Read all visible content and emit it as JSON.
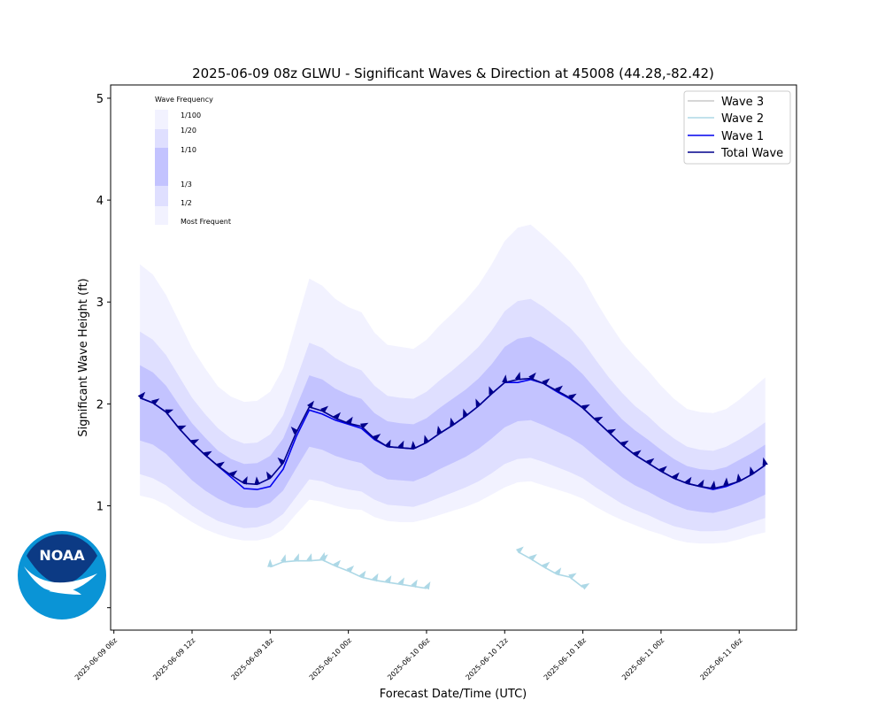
{
  "chart_data": {
    "type": "line",
    "title": "2025-06-09 08z GLWU - Significant Waves & Direction at 45008 (44.28,-82.42)",
    "xlabel": "Forecast Date/Time (UTC)",
    "ylabel": "Significant Wave Height (ft)",
    "ylim": [
      -0.22,
      5.13
    ],
    "xlim": [
      -0.25,
      52.4
    ],
    "y_ticks": [
      1,
      2,
      3,
      4,
      5
    ],
    "y_tick_labels": [
      "1",
      "2",
      "3",
      "4",
      "5"
    ],
    "x_ticks": [
      0,
      6,
      12,
      18,
      24,
      30,
      36,
      42,
      48
    ],
    "x_tick_labels": [
      "2025-06-09 06z",
      "2025-06-09 12z",
      "2025-06-09 18z",
      "2025-06-10 00z",
      "2025-06-10 06z",
      "2025-06-10 12z",
      "2025-06-10 18z",
      "2025-06-11 00z",
      "2025-06-11 06z"
    ],
    "grid": false,
    "legend_position": "top-right",
    "x_hours": [
      2,
      3,
      4,
      5,
      6,
      7,
      8,
      9,
      10,
      11,
      12,
      13,
      14,
      15,
      16,
      17,
      18,
      19,
      20,
      21,
      22,
      23,
      24,
      25,
      26,
      27,
      28,
      29,
      30,
      31,
      32,
      33,
      34,
      35,
      36,
      37,
      38,
      39,
      40,
      41,
      42,
      43,
      44,
      45,
      46,
      47,
      48,
      49,
      50
    ],
    "total_wave": [
      2.06,
      2.01,
      1.92,
      1.76,
      1.62,
      1.5,
      1.39,
      1.3,
      1.22,
      1.21,
      1.27,
      1.42,
      1.72,
      1.97,
      1.93,
      1.86,
      1.81,
      1.78,
      1.66,
      1.58,
      1.57,
      1.56,
      1.62,
      1.71,
      1.79,
      1.88,
      1.98,
      2.1,
      2.21,
      2.24,
      2.25,
      2.2,
      2.13,
      2.06,
      1.96,
      1.84,
      1.72,
      1.6,
      1.5,
      1.42,
      1.34,
      1.27,
      1.22,
      1.19,
      1.17,
      1.2,
      1.24,
      1.31,
      1.4
    ],
    "wave_1": [
      2.06,
      2.01,
      1.92,
      1.76,
      1.62,
      1.5,
      1.39,
      1.28,
      1.17,
      1.16,
      1.19,
      1.36,
      1.68,
      1.94,
      1.9,
      1.84,
      1.8,
      1.76,
      1.65,
      1.58,
      1.57,
      1.56,
      1.62,
      1.71,
      1.79,
      1.88,
      1.98,
      2.1,
      2.21,
      2.21,
      2.24,
      2.2,
      2.12,
      2.05,
      1.96,
      1.84,
      1.72,
      1.6,
      1.5,
      1.42,
      1.34,
      1.27,
      1.22,
      1.19,
      1.16,
      1.19,
      1.24,
      1.31,
      1.4
    ],
    "band_1_100_upper": [
      3.37,
      3.27,
      3.07,
      2.81,
      2.55,
      2.35,
      2.17,
      2.07,
      2.02,
      2.03,
      2.12,
      2.35,
      2.79,
      3.23,
      3.16,
      3.03,
      2.95,
      2.9,
      2.7,
      2.58,
      2.56,
      2.54,
      2.63,
      2.77,
      2.89,
      3.02,
      3.17,
      3.37,
      3.6,
      3.73,
      3.76,
      3.65,
      3.53,
      3.4,
      3.24,
      3.01,
      2.8,
      2.61,
      2.46,
      2.33,
      2.18,
      2.05,
      1.95,
      1.92,
      1.91,
      1.95,
      2.04,
      2.15,
      2.26
    ],
    "band_1_20_upper": [
      2.71,
      2.63,
      2.48,
      2.27,
      2.06,
      1.9,
      1.76,
      1.66,
      1.61,
      1.62,
      1.7,
      1.89,
      2.24,
      2.6,
      2.55,
      2.45,
      2.38,
      2.33,
      2.18,
      2.08,
      2.06,
      2.05,
      2.12,
      2.23,
      2.33,
      2.44,
      2.56,
      2.72,
      2.91,
      3.01,
      3.03,
      2.95,
      2.85,
      2.75,
      2.61,
      2.43,
      2.26,
      2.11,
      1.98,
      1.88,
      1.76,
      1.66,
      1.58,
      1.55,
      1.54,
      1.58,
      1.65,
      1.73,
      1.82
    ],
    "band_1_10_upper": [
      2.38,
      2.31,
      2.18,
      1.99,
      1.81,
      1.67,
      1.54,
      1.46,
      1.41,
      1.42,
      1.49,
      1.66,
      1.97,
      2.28,
      2.24,
      2.15,
      2.09,
      2.05,
      1.91,
      1.83,
      1.81,
      1.8,
      1.86,
      1.96,
      2.05,
      2.14,
      2.25,
      2.39,
      2.56,
      2.64,
      2.66,
      2.59,
      2.5,
      2.41,
      2.29,
      2.14,
      1.99,
      1.85,
      1.74,
      1.65,
      1.55,
      1.46,
      1.39,
      1.36,
      1.35,
      1.38,
      1.45,
      1.52,
      1.6
    ],
    "band_1_3_lower": [
      1.64,
      1.6,
      1.51,
      1.38,
      1.25,
      1.15,
      1.07,
      1.01,
      0.98,
      0.98,
      1.03,
      1.15,
      1.37,
      1.58,
      1.55,
      1.49,
      1.45,
      1.42,
      1.32,
      1.26,
      1.25,
      1.24,
      1.29,
      1.36,
      1.42,
      1.48,
      1.56,
      1.66,
      1.77,
      1.83,
      1.84,
      1.79,
      1.73,
      1.67,
      1.59,
      1.48,
      1.38,
      1.28,
      1.2,
      1.14,
      1.07,
      1.01,
      0.96,
      0.94,
      0.93,
      0.96,
      1.0,
      1.05,
      1.11
    ],
    "band_1_2_lower": [
      1.31,
      1.27,
      1.2,
      1.1,
      1.0,
      0.92,
      0.85,
      0.81,
      0.78,
      0.79,
      0.83,
      0.92,
      1.09,
      1.26,
      1.24,
      1.19,
      1.16,
      1.14,
      1.06,
      1.01,
      1.0,
      0.99,
      1.03,
      1.08,
      1.13,
      1.18,
      1.24,
      1.32,
      1.41,
      1.46,
      1.47,
      1.43,
      1.38,
      1.33,
      1.27,
      1.18,
      1.1,
      1.02,
      0.96,
      0.91,
      0.85,
      0.8,
      0.77,
      0.75,
      0.75,
      0.76,
      0.8,
      0.84,
      0.88
    ],
    "band_most_frequent_lower": [
      1.1,
      1.07,
      1.01,
      0.92,
      0.84,
      0.77,
      0.72,
      0.68,
      0.66,
      0.66,
      0.69,
      0.77,
      0.92,
      1.06,
      1.04,
      1.0,
      0.97,
      0.96,
      0.89,
      0.85,
      0.84,
      0.84,
      0.87,
      0.91,
      0.95,
      0.99,
      1.04,
      1.11,
      1.18,
      1.23,
      1.24,
      1.2,
      1.16,
      1.12,
      1.07,
      0.99,
      0.92,
      0.86,
      0.81,
      0.76,
      0.72,
      0.67,
      0.64,
      0.63,
      0.63,
      0.64,
      0.67,
      0.71,
      0.74
    ],
    "wave_2_segments": [
      {
        "x": [
          12,
          13,
          14,
          15,
          16
        ],
        "y": [
          0.4,
          0.45,
          0.46,
          0.46,
          0.47
        ]
      },
      {
        "x": [
          16,
          17,
          18,
          19,
          20,
          21,
          22,
          23,
          24
        ],
        "y": [
          0.47,
          0.41,
          0.36,
          0.3,
          0.27,
          0.25,
          0.23,
          0.21,
          0.19
        ]
      },
      {
        "x": [
          31,
          32,
          33,
          34,
          35,
          36
        ],
        "y": [
          0.55,
          0.48,
          0.4,
          0.33,
          0.3,
          0.2
        ]
      }
    ],
    "wave_direction_arrows": "per-point triangular direction markers along Total Wave and Wave 2",
    "legend_entries": [
      {
        "name": "Wave 3",
        "color": "#c8c8c8"
      },
      {
        "name": "Wave 2",
        "color": "#add8e6"
      },
      {
        "name": "Wave 1",
        "color": "#0000ee"
      },
      {
        "name": "Total Wave",
        "color": "#00008b"
      }
    ],
    "band_legend": {
      "title": "Wave Frequency",
      "labels": [
        "1/100",
        "1/20",
        "1/10",
        "1/3",
        "1/2",
        "Most Frequent"
      ]
    },
    "colors": {
      "band": "#0000ff",
      "total_wave": "#00008b",
      "wave_1": "#0000ee",
      "wave_2": "#add8e6",
      "wave_3": "#c8c8c8"
    }
  },
  "logo": {
    "text": "NOAA"
  }
}
